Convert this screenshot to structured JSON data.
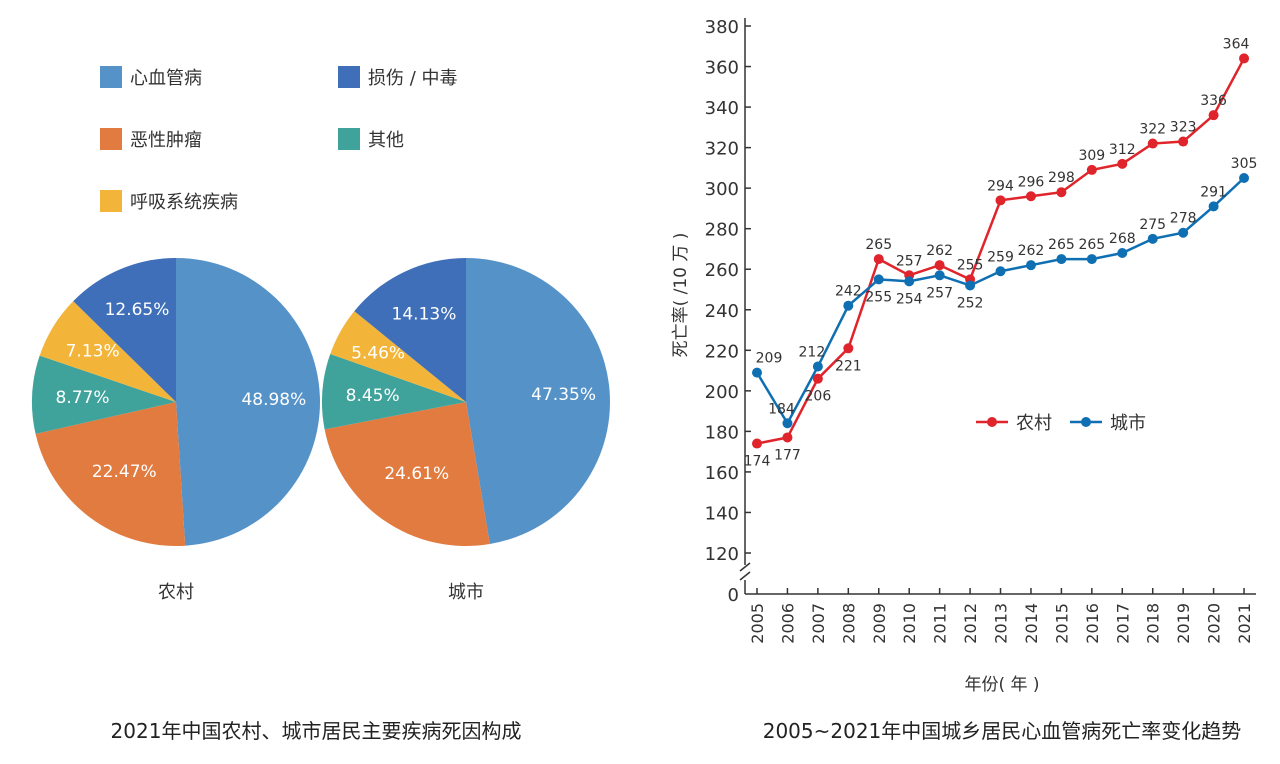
{
  "chart_data": [
    {
      "type": "pie",
      "title": "2021年中国农村、城市居民主要疾病死因构成",
      "legend": [
        {
          "label": "心血管病",
          "color": "#5592c8"
        },
        {
          "label": "损伤 / 中毒",
          "color": "#3f6fb8"
        },
        {
          "label": "恶性肿瘤",
          "color": "#e27b3f"
        },
        {
          "label": "其他",
          "color": "#3fa39c"
        },
        {
          "label": "呼吸系统疾病",
          "color": "#f2b53a"
        }
      ],
      "pies": [
        {
          "name": "农村",
          "slices": [
            {
              "category": "心血管病",
              "value": 48.98,
              "label": "48.98%"
            },
            {
              "category": "恶性肿瘤",
              "value": 22.47,
              "label": "22.47%"
            },
            {
              "category": "其他",
              "value": 8.77,
              "label": "8.77%"
            },
            {
              "category": "呼吸系统疾病",
              "value": 7.13,
              "label": "7.13%"
            },
            {
              "category": "损伤 / 中毒",
              "value": 12.65,
              "label": "12.65%"
            }
          ]
        },
        {
          "name": "城市",
          "slices": [
            {
              "category": "心血管病",
              "value": 47.35,
              "label": "47.35%"
            },
            {
              "category": "恶性肿瘤",
              "value": 24.61,
              "label": "24.61%"
            },
            {
              "category": "其他",
              "value": 8.45,
              "label": "8.45%"
            },
            {
              "category": "呼吸系统疾病",
              "value": 5.46,
              "label": "5.46%"
            },
            {
              "category": "损伤 / 中毒",
              "value": 14.13,
              "label": "14.13%"
            }
          ]
        }
      ]
    },
    {
      "type": "line",
      "title": "2005~2021年中国城乡居民心血管病死亡率变化趋势",
      "xlabel": "年份( 年 )",
      "ylabel": "死亡率( /10 万 )",
      "x": [
        2005,
        2006,
        2007,
        2008,
        2009,
        2010,
        2011,
        2012,
        2013,
        2014,
        2015,
        2016,
        2017,
        2018,
        2019,
        2020,
        2021
      ],
      "yticks": [
        0,
        120,
        140,
        160,
        180,
        200,
        220,
        240,
        260,
        280,
        300,
        320,
        340,
        360,
        380
      ],
      "ylim": [
        120,
        380
      ],
      "axis_break": true,
      "legend_position": "center-right",
      "series": [
        {
          "name": "农村",
          "color": "#e0242b",
          "values": [
            174,
            177,
            206,
            221,
            265,
            257,
            262,
            255,
            294,
            296,
            298,
            309,
            312,
            322,
            323,
            336,
            364
          ]
        },
        {
          "name": "城市",
          "color": "#0f6fb3",
          "values": [
            209,
            184,
            212,
            242,
            255,
            254,
            257,
            252,
            259,
            262,
            265,
            265,
            268,
            275,
            278,
            291,
            305
          ]
        }
      ]
    }
  ]
}
